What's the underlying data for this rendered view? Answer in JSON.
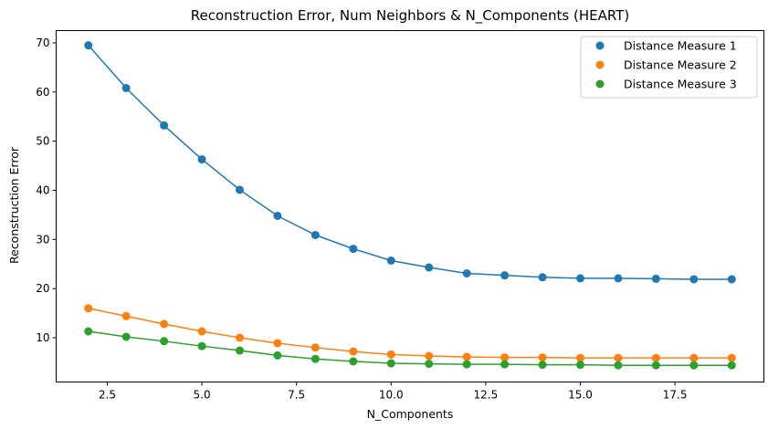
{
  "chart_data": {
    "type": "line",
    "title": "Reconstruction Error, Num Neighbors & N_Components (HEART)",
    "xlabel": "N_Components",
    "ylabel": "Reconstruction Error",
    "xlim": [
      1.15,
      19.85
    ],
    "ylim": [
      1.0,
      72.5
    ],
    "xticks": [
      2.5,
      5.0,
      7.5,
      10.0,
      12.5,
      15.0,
      17.5
    ],
    "xtick_labels": [
      "2.5",
      "5.0",
      "7.5",
      "10.0",
      "12.5",
      "15.0",
      "17.5"
    ],
    "yticks": [
      10,
      20,
      30,
      40,
      50,
      60,
      70
    ],
    "ytick_labels": [
      "10",
      "20",
      "30",
      "40",
      "50",
      "60",
      "70"
    ],
    "grid": false,
    "legend_position": "top-right",
    "x": [
      2,
      3,
      4,
      5,
      6,
      7,
      8,
      9,
      10,
      11,
      12,
      13,
      14,
      15,
      16,
      17,
      18,
      19
    ],
    "series": [
      {
        "name": "Distance Measure 1",
        "color": "#1f77b4",
        "values": [
          69.5,
          60.8,
          53.2,
          46.3,
          40.1,
          34.8,
          30.9,
          28.1,
          25.7,
          24.3,
          23.1,
          22.7,
          22.3,
          22.1,
          22.1,
          22.0,
          21.9,
          21.9
        ]
      },
      {
        "name": "Distance Measure 2",
        "color": "#ff7f0e",
        "values": [
          16.0,
          14.4,
          12.8,
          11.3,
          10.0,
          8.9,
          8.0,
          7.2,
          6.6,
          6.3,
          6.1,
          6.0,
          6.0,
          5.9,
          5.9,
          5.9,
          5.9,
          5.9
        ]
      },
      {
        "name": "Distance Measure 3",
        "color": "#2ca02c",
        "values": [
          11.3,
          10.2,
          9.3,
          8.3,
          7.4,
          6.4,
          5.7,
          5.2,
          4.8,
          4.7,
          4.6,
          4.6,
          4.5,
          4.5,
          4.4,
          4.4,
          4.4,
          4.4
        ]
      }
    ]
  }
}
